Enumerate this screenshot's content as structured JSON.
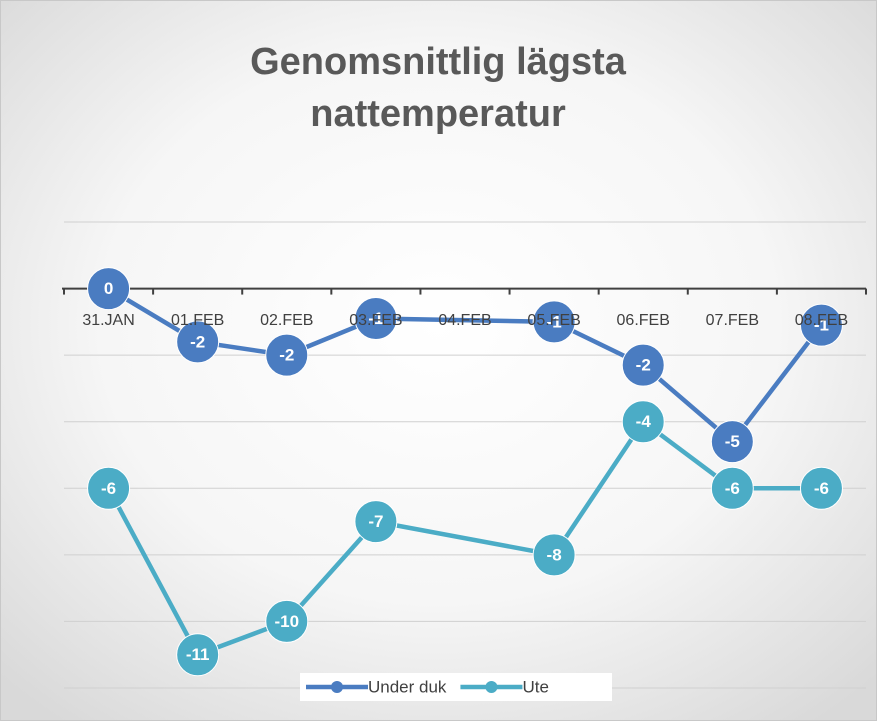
{
  "chart_data": {
    "type": "line",
    "title": "Genomsnittlig lägsta nattemperatur",
    "categories": [
      "31.JAN",
      "01.FEB",
      "02.FEB",
      "03.FEB",
      "04.FEB",
      "05.FEB",
      "06.FEB",
      "07.FEB",
      "08.FEB"
    ],
    "series": [
      {
        "name": "Under duk",
        "color": "#4a7cc1",
        "values": [
          0,
          -1.6,
          -2,
          -0.9,
          null,
          -1,
          -2.3,
          -4.6,
          -1.1
        ],
        "value_labels": [
          "0",
          "-2",
          "-2",
          "-1",
          null,
          "-1",
          "-2",
          "-5",
          "-1"
        ]
      },
      {
        "name": "Ute",
        "color": "#4bacc6",
        "values": [
          -6,
          -11,
          -10,
          -7,
          null,
          -8,
          -4,
          -6,
          -6
        ]
      }
    ],
    "ylim": [
      -12,
      2
    ],
    "yticks": [
      -12,
      -10,
      -8,
      -6,
      -4,
      -2,
      0,
      2
    ],
    "grid": true,
    "show_ytick_labels": false,
    "connect_gaps": true,
    "legend": "bottom"
  }
}
